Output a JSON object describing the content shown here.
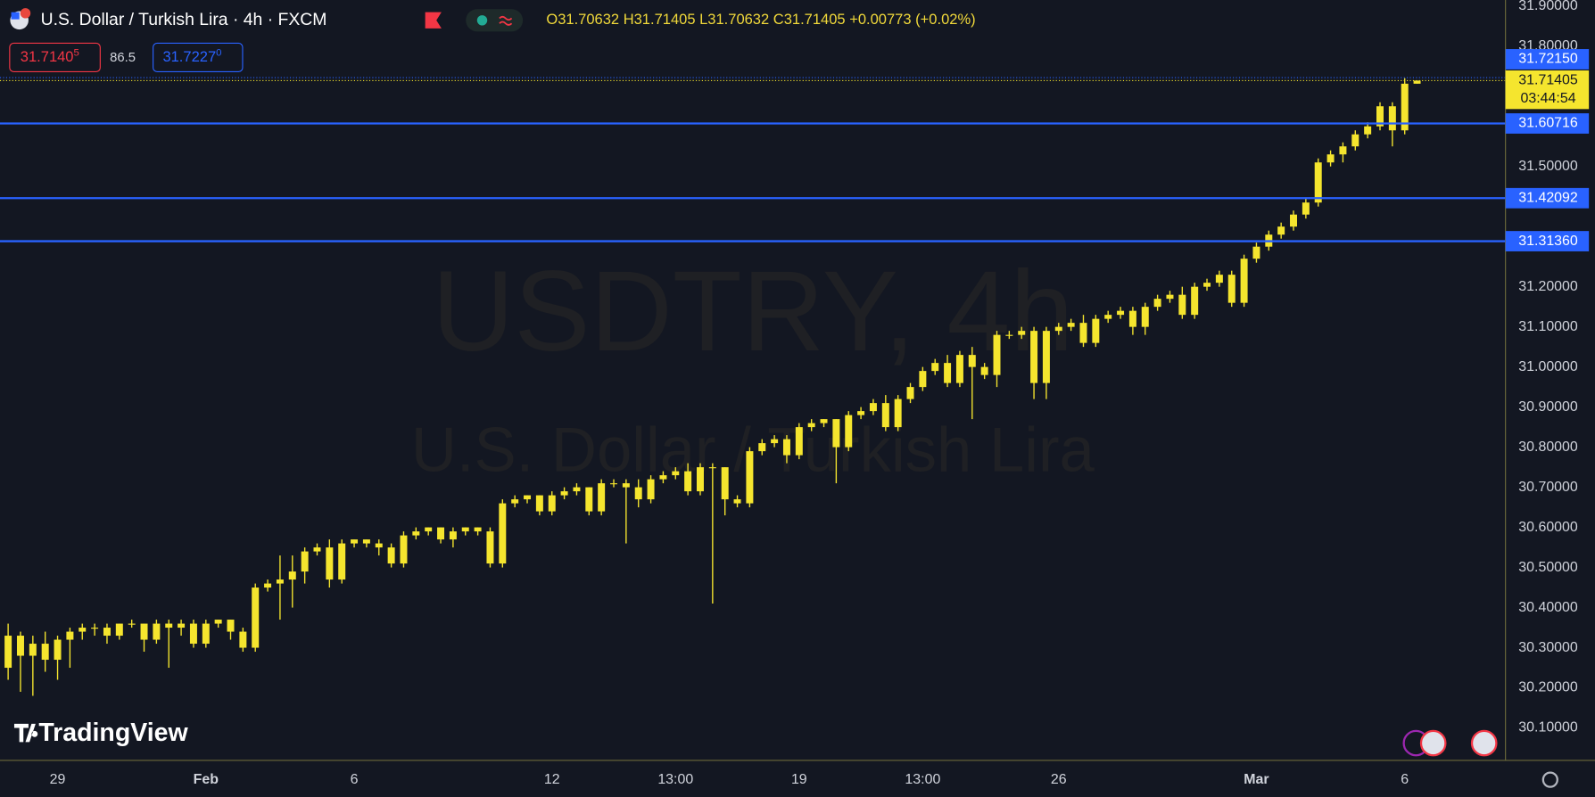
{
  "chart_data": {
    "type": "candlestick",
    "title": "U.S. Dollar / Turkish Lira · 4h · FXCM",
    "legend": {
      "labels": [
        "O",
        "H",
        "L",
        "C"
      ],
      "change": "+0.00773",
      "change_pct": "(+0.02%)"
    },
    "quote": {
      "bid": "31.7140",
      "bid_sup": "5",
      "spread": "86.5",
      "ask": "31.7227",
      "ask_sup": "0"
    },
    "watermark": {
      "symbol": "USDTRY, 4h",
      "description": "U.S. Dollar / Turkish Lira"
    },
    "logo": "TradingView",
    "countdown": "03:44:54",
    "color": "#f5e52e",
    "grid": false,
    "ylim": [
      30.019,
      31.915
    ],
    "yticks": [
      {
        "value": 31.9,
        "label": "31.90000"
      },
      {
        "value": 31.8,
        "label": "31.80000"
      },
      {
        "value": 31.5,
        "label": "31.50000"
      },
      {
        "value": 31.2,
        "label": "31.20000"
      },
      {
        "value": 31.1,
        "label": "31.10000"
      },
      {
        "value": 31.0,
        "label": "31.00000"
      },
      {
        "value": 30.9,
        "label": "30.90000"
      },
      {
        "value": 30.8,
        "label": "30.80000"
      },
      {
        "value": 30.7,
        "label": "30.70000"
      },
      {
        "value": 30.6,
        "label": "30.60000"
      },
      {
        "value": 30.5,
        "label": "30.50000"
      },
      {
        "value": 30.4,
        "label": "30.40000"
      },
      {
        "value": 30.3,
        "label": "30.30000"
      },
      {
        "value": 30.2,
        "label": "30.20000"
      },
      {
        "value": 30.1,
        "label": "30.10000"
      }
    ],
    "price_lines": [
      {
        "value": 31.7215,
        "label": "31.72150",
        "color": "#2962ff",
        "style": "dotted"
      },
      {
        "value": 31.60716,
        "label": "31.60716",
        "color": "#2962ff",
        "style": "solid"
      },
      {
        "value": 31.42092,
        "label": "31.42092",
        "color": "#2962ff",
        "style": "solid"
      },
      {
        "value": 31.3136,
        "label": "31.31360",
        "color": "#2962ff",
        "style": "solid"
      }
    ],
    "categories": [
      null,
      null,
      null,
      null,
      "29",
      null,
      null,
      null,
      null,
      null,
      null,
      null,
      null,
      null,
      null,
      null,
      "Feb",
      null,
      null,
      null,
      null,
      null,
      null,
      null,
      null,
      null,
      null,
      null,
      "6",
      null,
      null,
      null,
      null,
      null,
      null,
      null,
      null,
      null,
      null,
      null,
      null,
      null,
      null,
      null,
      "12",
      null,
      null,
      null,
      null,
      null,
      null,
      null,
      null,
      null,
      "13:00",
      null,
      null,
      null,
      null,
      null,
      null,
      null,
      null,
      null,
      "19",
      null,
      null,
      null,
      null,
      null,
      null,
      null,
      null,
      null,
      "13:00",
      null,
      null,
      null,
      null,
      null,
      null,
      null,
      null,
      null,
      null,
      "26",
      null,
      null,
      null,
      null,
      null,
      null,
      null,
      null,
      null,
      null,
      null,
      null,
      null,
      null,
      null,
      "Mar",
      null,
      null,
      null,
      null,
      null,
      null,
      null,
      null,
      null,
      null,
      null,
      "6",
      null
    ],
    "ohlc": [
      [
        30.25,
        30.36,
        30.22,
        30.33
      ],
      [
        30.33,
        30.34,
        30.19,
        30.28
      ],
      [
        30.28,
        30.33,
        30.18,
        30.31
      ],
      [
        30.31,
        30.34,
        30.24,
        30.27
      ],
      [
        30.27,
        30.33,
        30.22,
        30.32
      ],
      [
        30.32,
        30.35,
        30.25,
        30.34
      ],
      [
        30.34,
        30.36,
        30.32,
        30.35
      ],
      [
        30.35,
        30.36,
        30.33,
        30.35
      ],
      [
        30.35,
        30.36,
        30.31,
        30.33
      ],
      [
        30.33,
        30.36,
        30.32,
        30.36
      ],
      [
        30.36,
        30.37,
        30.35,
        30.36
      ],
      [
        30.36,
        30.36,
        30.29,
        30.32
      ],
      [
        30.32,
        30.37,
        30.31,
        30.36
      ],
      [
        30.36,
        30.37,
        30.25,
        30.35
      ],
      [
        30.35,
        30.37,
        30.33,
        30.36
      ],
      [
        30.36,
        30.37,
        30.3,
        30.31
      ],
      [
        30.31,
        30.37,
        30.3,
        30.36
      ],
      [
        30.36,
        30.37,
        30.35,
        30.37
      ],
      [
        30.37,
        30.37,
        30.32,
        30.34
      ],
      [
        30.34,
        30.35,
        30.29,
        30.3
      ],
      [
        30.3,
        30.46,
        30.29,
        30.45
      ],
      [
        30.45,
        30.47,
        30.44,
        30.46
      ],
      [
        30.46,
        30.53,
        30.37,
        30.47
      ],
      [
        30.47,
        30.53,
        30.4,
        30.49
      ],
      [
        30.49,
        30.55,
        30.46,
        30.54
      ],
      [
        30.54,
        30.56,
        30.53,
        30.55
      ],
      [
        30.55,
        30.57,
        30.45,
        30.47
      ],
      [
        30.47,
        30.57,
        30.46,
        30.56
      ],
      [
        30.56,
        30.57,
        30.55,
        30.57
      ],
      [
        30.57,
        30.57,
        30.55,
        30.56
      ],
      [
        30.56,
        30.57,
        30.53,
        30.55
      ],
      [
        30.55,
        30.56,
        30.5,
        30.51
      ],
      [
        30.51,
        30.59,
        30.5,
        30.58
      ],
      [
        30.58,
        30.6,
        30.57,
        30.59
      ],
      [
        30.59,
        30.6,
        30.58,
        30.6
      ],
      [
        30.6,
        30.6,
        30.56,
        30.57
      ],
      [
        30.57,
        30.6,
        30.55,
        30.59
      ],
      [
        30.59,
        30.6,
        30.58,
        30.6
      ],
      [
        30.6,
        30.6,
        30.58,
        30.59
      ],
      [
        30.59,
        30.6,
        30.5,
        30.51
      ],
      [
        30.51,
        30.67,
        30.5,
        30.66
      ],
      [
        30.66,
        30.68,
        30.65,
        30.67
      ],
      [
        30.67,
        30.68,
        30.66,
        30.68
      ],
      [
        30.68,
        30.68,
        30.63,
        30.64
      ],
      [
        30.64,
        30.69,
        30.63,
        30.68
      ],
      [
        30.68,
        30.7,
        30.67,
        30.69
      ],
      [
        30.69,
        30.71,
        30.68,
        30.7
      ],
      [
        30.7,
        30.7,
        30.63,
        30.64
      ],
      [
        30.64,
        30.72,
        30.63,
        30.71
      ],
      [
        30.71,
        30.72,
        30.7,
        30.71
      ],
      [
        30.71,
        30.72,
        30.56,
        30.7
      ],
      [
        30.7,
        30.72,
        30.65,
        30.67
      ],
      [
        30.67,
        30.73,
        30.66,
        30.72
      ],
      [
        30.72,
        30.74,
        30.71,
        30.73
      ],
      [
        30.73,
        30.75,
        30.72,
        30.74
      ],
      [
        30.74,
        30.76,
        30.68,
        30.69
      ],
      [
        30.69,
        30.76,
        30.68,
        30.75
      ],
      [
        30.75,
        30.76,
        30.41,
        30.75
      ],
      [
        30.75,
        30.75,
        30.63,
        30.67
      ],
      [
        30.67,
        30.68,
        30.65,
        30.66
      ],
      [
        30.66,
        30.8,
        30.65,
        30.79
      ],
      [
        30.79,
        30.82,
        30.78,
        30.81
      ],
      [
        30.81,
        30.83,
        30.8,
        30.82
      ],
      [
        30.82,
        30.83,
        30.76,
        30.78
      ],
      [
        30.78,
        30.86,
        30.77,
        30.85
      ],
      [
        30.85,
        30.87,
        30.84,
        30.86
      ],
      [
        30.86,
        30.87,
        30.85,
        30.87
      ],
      [
        30.87,
        30.87,
        30.71,
        30.8
      ],
      [
        30.8,
        30.89,
        30.79,
        30.88
      ],
      [
        30.88,
        30.9,
        30.87,
        30.89
      ],
      [
        30.89,
        30.92,
        30.88,
        30.91
      ],
      [
        30.91,
        30.93,
        30.84,
        30.85
      ],
      [
        30.85,
        30.93,
        30.84,
        30.92
      ],
      [
        30.92,
        30.96,
        30.91,
        30.95
      ],
      [
        30.95,
        31.0,
        30.94,
        30.99
      ],
      [
        30.99,
        31.02,
        30.98,
        31.01
      ],
      [
        31.01,
        31.03,
        30.95,
        30.96
      ],
      [
        30.96,
        31.04,
        30.95,
        31.03
      ],
      [
        31.03,
        31.05,
        30.87,
        31.0
      ],
      [
        31.0,
        31.01,
        30.97,
        30.98
      ],
      [
        30.98,
        31.09,
        30.95,
        31.08
      ],
      [
        31.08,
        31.09,
        31.07,
        31.08
      ],
      [
        31.08,
        31.1,
        31.07,
        31.09
      ],
      [
        31.09,
        31.1,
        30.92,
        30.96
      ],
      [
        30.96,
        31.1,
        30.92,
        31.09
      ],
      [
        31.09,
        31.11,
        31.08,
        31.1
      ],
      [
        31.1,
        31.12,
        31.09,
        31.11
      ],
      [
        31.11,
        31.13,
        31.05,
        31.06
      ],
      [
        31.06,
        31.13,
        31.05,
        31.12
      ],
      [
        31.12,
        31.14,
        31.11,
        31.13
      ],
      [
        31.13,
        31.15,
        31.12,
        31.14
      ],
      [
        31.14,
        31.15,
        31.08,
        31.1
      ],
      [
        31.1,
        31.16,
        31.08,
        31.15
      ],
      [
        31.15,
        31.18,
        31.14,
        31.17
      ],
      [
        31.17,
        31.19,
        31.16,
        31.18
      ],
      [
        31.18,
        31.2,
        31.12,
        31.13
      ],
      [
        31.13,
        31.21,
        31.12,
        31.2
      ],
      [
        31.2,
        31.22,
        31.19,
        31.21
      ],
      [
        31.21,
        31.24,
        31.2,
        31.23
      ],
      [
        31.23,
        31.24,
        31.15,
        31.16
      ],
      [
        31.16,
        31.28,
        31.15,
        31.27
      ],
      [
        31.27,
        31.31,
        31.26,
        31.3
      ],
      [
        31.3,
        31.34,
        31.29,
        31.33
      ],
      [
        31.33,
        31.36,
        31.32,
        31.35
      ],
      [
        31.35,
        31.39,
        31.34,
        31.38
      ],
      [
        31.38,
        31.42,
        31.37,
        31.41
      ],
      [
        31.41,
        31.52,
        31.4,
        31.51
      ],
      [
        31.51,
        31.54,
        31.5,
        31.53
      ],
      [
        31.53,
        31.56,
        31.51,
        31.55
      ],
      [
        31.55,
        31.59,
        31.54,
        31.58
      ],
      [
        31.58,
        31.61,
        31.57,
        31.6
      ],
      [
        31.6,
        31.66,
        31.59,
        31.65
      ],
      [
        31.65,
        31.66,
        31.55,
        31.59
      ],
      [
        31.59,
        31.72,
        31.58,
        31.70632
      ],
      [
        31.70632,
        31.71405,
        31.70632,
        31.71405
      ]
    ]
  }
}
